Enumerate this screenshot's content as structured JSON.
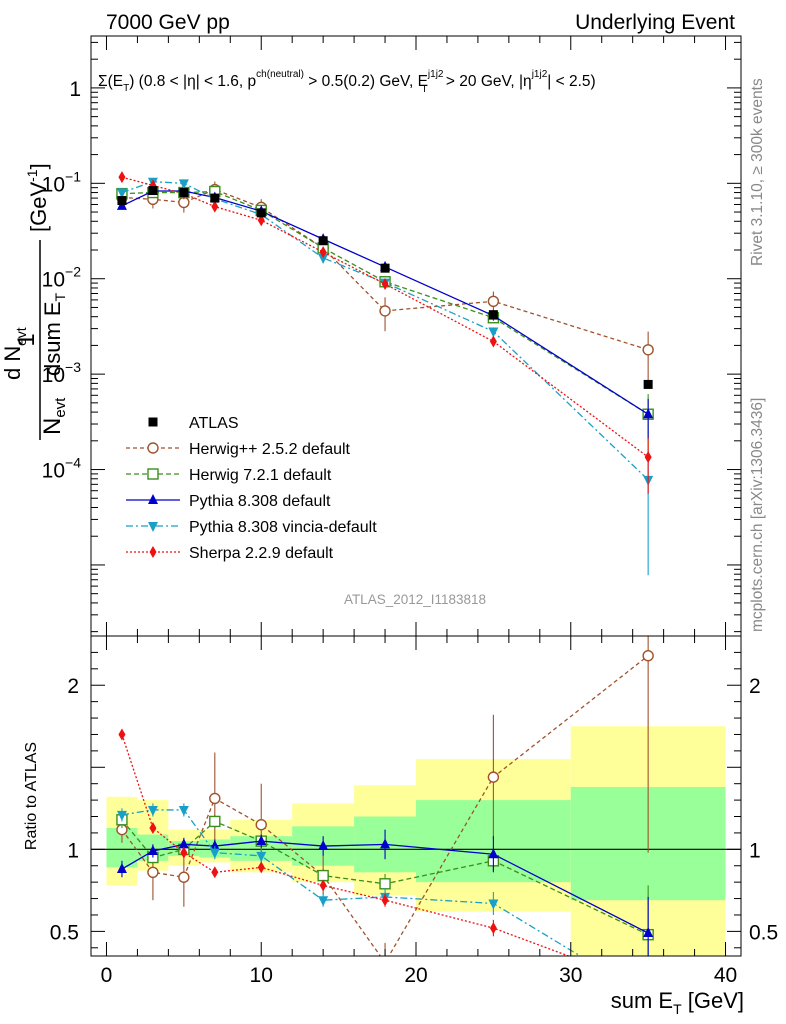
{
  "chart_data": {
    "type": "line",
    "header_left": "7000 GeV pp",
    "header_right": "Underlying Event",
    "subtitle": "Σ(E_T) (0.8 < |η| < 1.6, p^ch(neutral) > 0.5(0.2) GeV, E_T^j1j2 > 20 GeV, |η^j1j2| < 2.5)",
    "subtitle_parts": {
      "a": "Σ(E",
      "a_sub": "T",
      "b": ") (0.8 < |η| < 1.6, p",
      "b_sup": "ch(neutral)",
      "c": " > 0.5(0.2) GeV, E",
      "c_sup": "j1j2",
      "c_sub": "T",
      "d": " > 20 GeV, |η",
      "d_sup": "j1j2",
      "e": "| < 2.5)"
    },
    "ylabel": "1/N_evt dN_evt/dsum E_T [GeV^-1]",
    "ylabel_parts": {
      "one": "1",
      "den": "N",
      "den_sub": "evt",
      "num": "d N",
      "num_sub": "evt",
      "ds": "dsum E",
      "ds_sub": "T",
      "unit": "[GeV",
      "unit_sup": "-1",
      "unit_close": "]"
    },
    "ratio_ylabel": "Ratio to ATLAS",
    "xlabel": "sum E_T [GeV]",
    "xlabel_parts": {
      "a": "sum E",
      "sub": "T",
      "b": " [GeV]"
    },
    "side_label_top": "Rivet 3.1.10, ≥ 300k events",
    "side_label_bottom": "mcplots.cern.ch [arXiv:1306.3436]",
    "watermark": "ATLAS_2012_I1183818",
    "xlim": [
      -1,
      41
    ],
    "ylim_main": [
      1.8e-06,
      3.5
    ],
    "ylim_ratio": [
      0.35,
      2.3
    ],
    "x_ticks": [
      0,
      10,
      20,
      30,
      40
    ],
    "main_y_ticks": [
      {
        "value": 1,
        "label": "1",
        "base": "1",
        "exp": ""
      },
      {
        "value": 0.1,
        "label": "10^-1",
        "base": "10",
        "exp": "−1"
      },
      {
        "value": 0.01,
        "label": "10^-2",
        "base": "10",
        "exp": "−2"
      },
      {
        "value": 0.001,
        "label": "10^-3",
        "base": "10",
        "exp": "−3"
      },
      {
        "value": 0.0001,
        "label": "10^-4",
        "base": "10",
        "exp": "−4"
      }
    ],
    "ratio_y_ticks": [
      {
        "value": 0.5,
        "label": "0.5"
      },
      {
        "value": 1,
        "label": "1"
      },
      {
        "value": 2,
        "label": "2"
      }
    ],
    "bins": [
      [
        0,
        2
      ],
      [
        2,
        4
      ],
      [
        4,
        6
      ],
      [
        6,
        8
      ],
      [
        8,
        12
      ],
      [
        12,
        16
      ],
      [
        16,
        20
      ],
      [
        20,
        30
      ],
      [
        30,
        40
      ]
    ],
    "x": [
      1,
      3,
      5,
      7,
      10,
      14,
      18,
      25,
      35
    ],
    "band_inner": [
      [
        0.89,
        1.13
      ],
      [
        0.93,
        1.09
      ],
      [
        0.96,
        1.05
      ],
      [
        0.95,
        1.06
      ],
      [
        0.93,
        1.08
      ],
      [
        0.9,
        1.14
      ],
      [
        0.86,
        1.2
      ],
      [
        0.8,
        1.3
      ],
      [
        0.69,
        1.38
      ]
    ],
    "band_outer": [
      [
        0.78,
        1.32
      ],
      [
        0.87,
        1.3
      ],
      [
        0.9,
        1.12
      ],
      [
        0.92,
        1.12
      ],
      [
        0.86,
        1.18
      ],
      [
        0.8,
        1.28
      ],
      [
        0.72,
        1.39
      ],
      [
        0.62,
        1.55
      ],
      [
        0.32,
        1.75
      ]
    ],
    "atlas": [
      0.066,
      0.084,
      0.08,
      0.07,
      0.049,
      0.025,
      0.0129,
      0.0042,
      0.00078
    ],
    "legend": [
      "ATLAS",
      "Herwig++ 2.5.2 default",
      "Herwig 7.2.1 default",
      "Pythia 8.308 default",
      "Pythia 8.308 vincia-default",
      "Sherpa 2.2.9 default"
    ],
    "series": [
      {
        "name": "Herwig++ 2.5.2 default",
        "color": "#a0522d",
        "marker": "circle-open",
        "dash": "4,3",
        "values": [
          0.071,
          0.068,
          0.063,
          0.086,
          0.056,
          0.021,
          0.0046,
          0.0058,
          0.0018
        ],
        "ratio": [
          1.12,
          0.86,
          0.83,
          1.31,
          1.15,
          0.84,
          0.31,
          1.44,
          2.18
        ],
        "ratio_err": [
          0.08,
          0.17,
          0.18,
          0.28,
          0.25,
          0.12,
          0.12,
          0.38,
          1.2
        ]
      },
      {
        "name": "Herwig 7.2.1 default",
        "color": "#3a8f1c",
        "marker": "square-open",
        "dash": "5,3",
        "values": [
          0.078,
          0.08,
          0.08,
          0.082,
          0.052,
          0.021,
          0.0093,
          0.0039,
          0.00038
        ],
        "ratio": [
          1.18,
          0.95,
          1.0,
          1.17,
          1.05,
          0.84,
          0.79,
          0.93,
          0.48
        ],
        "ratio_err": [
          0.05,
          0.04,
          0.03,
          0.04,
          0.03,
          0.04,
          0.06,
          0.06,
          0.3
        ]
      },
      {
        "name": "Pythia 8.308 default",
        "color": "#0000cc",
        "marker": "triangle-up",
        "dash": "",
        "values": [
          0.058,
          0.083,
          0.083,
          0.071,
          0.051,
          0.026,
          0.0133,
          0.0041,
          0.00038
        ],
        "ratio": [
          0.88,
          0.99,
          1.03,
          1.02,
          1.05,
          1.02,
          1.03,
          0.97,
          0.49
        ],
        "ratio_err": [
          0.05,
          0.04,
          0.04,
          0.04,
          0.04,
          0.06,
          0.09,
          0.11,
          0.22
        ]
      },
      {
        "name": "Pythia 8.308 vincia-default",
        "color": "#1a9fc7",
        "marker": "triangle-down",
        "dash": "7,3,2,3",
        "values": [
          0.08,
          0.104,
          0.1,
          0.069,
          0.047,
          0.0165,
          0.0091,
          0.0028,
          7.8e-05
        ],
        "ratio": [
          1.21,
          1.24,
          1.24,
          0.98,
          0.96,
          0.69,
          0.71,
          0.67,
          0.1
        ],
        "ratio_err": [
          0.04,
          0.04,
          0.04,
          0.04,
          0.04,
          0.04,
          0.05,
          0.07,
          0.1
        ]
      },
      {
        "name": "Sherpa 2.2.9 default",
        "color": "#ee1111",
        "marker": "diamond",
        "dash": "2,2",
        "values": [
          0.116,
          0.095,
          0.078,
          0.057,
          0.041,
          0.019,
          0.0088,
          0.0022,
          0.000135
        ],
        "ratio": [
          1.7,
          1.13,
          0.98,
          0.86,
          0.89,
          0.78,
          0.69,
          0.52,
          0.17
        ],
        "ratio_err": [
          0.03,
          0.02,
          0.02,
          0.02,
          0.02,
          0.03,
          0.04,
          0.05,
          0.1
        ]
      }
    ]
  }
}
